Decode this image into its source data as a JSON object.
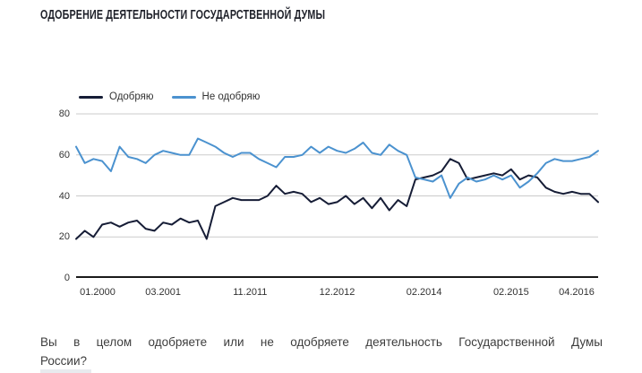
{
  "page": {
    "title": "ОДОБРЕНИЕ ДЕЯТЕЛЬНОСТИ ГОСУДАРСТВЕННОЙ ДУМЫ",
    "question_lines": [
      "Вы в целом одобряете или не одобряете деятельность Государственной Думы",
      "России?"
    ]
  },
  "chart_data": {
    "type": "line",
    "title": "ОДОБРЕНИЕ ДЕЯТЕЛЬНОСТИ ГОСУДАРСТВЕННОЙ ДУМЫ",
    "x_tick_labels": [
      "01.2000",
      "03.2001",
      "11.2011",
      "12.2012",
      "02.2014",
      "02.2015",
      "04.2016"
    ],
    "x_tick_indices": [
      0,
      10,
      20,
      30,
      40,
      50,
      60
    ],
    "y_ticks": [
      0,
      20,
      40,
      60,
      80
    ],
    "ylim": [
      0,
      80
    ],
    "grid": true,
    "grid_color": "#cbcbcb",
    "axis_color": "#1a1a1a",
    "legend_position": "top-left",
    "series": [
      {
        "name": "Одобряю",
        "color": "#161d36",
        "values": [
          19,
          23,
          20,
          26,
          27,
          25,
          27,
          28,
          24,
          23,
          27,
          26,
          29,
          27,
          28,
          19,
          35,
          37,
          39,
          38,
          38,
          38,
          40,
          45,
          41,
          42,
          41,
          37,
          39,
          36,
          37,
          40,
          36,
          39,
          34,
          39,
          33,
          38,
          35,
          48,
          49,
          50,
          52,
          58,
          56,
          48,
          49,
          50,
          51,
          50,
          53,
          48,
          50,
          49,
          44,
          42,
          41,
          42,
          41,
          41,
          37
        ]
      },
      {
        "name": "Не одобряю",
        "color": "#4b92cf",
        "values": [
          64,
          56,
          58,
          57,
          52,
          64,
          59,
          58,
          56,
          60,
          62,
          61,
          60,
          60,
          68,
          66,
          64,
          61,
          59,
          61,
          61,
          58,
          56,
          54,
          59,
          59,
          60,
          64,
          61,
          64,
          62,
          61,
          63,
          66,
          61,
          60,
          65,
          62,
          60,
          49,
          48,
          47,
          50,
          39,
          46,
          49,
          47,
          48,
          50,
          48,
          50,
          44,
          47,
          51,
          56,
          58,
          57,
          57,
          58,
          59,
          62
        ]
      }
    ]
  }
}
